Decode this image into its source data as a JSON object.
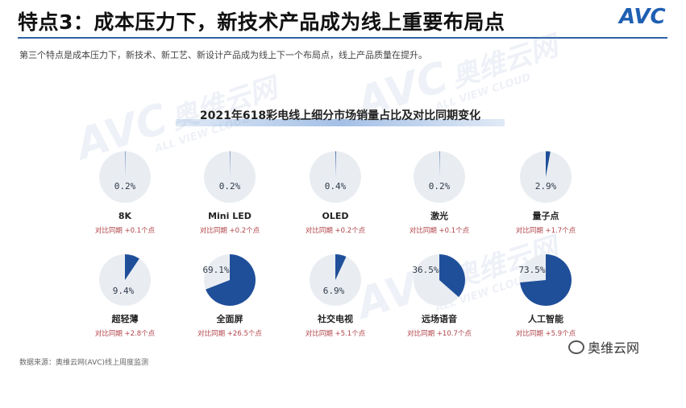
{
  "header": {
    "title": "特点3：成本压力下，新技术产品成为线上重要布局点",
    "logo": "AVC",
    "subtitle": "第三个特点是成本压力下，新技术、新工艺、新设计产品成为线上下一个布局点，线上产品质量在提升。"
  },
  "watermark": {
    "main": "AVC",
    "cn": "奥维云网",
    "sub": "ALL VIEW CLOUD"
  },
  "colors": {
    "pie_fill": "#1f4f99",
    "pie_base": "#e9edf2",
    "change_text": "#b1444a",
    "title_rule": "#2d63a8"
  },
  "chart_data": {
    "type": "pie",
    "title": "2021年618彩电线上细分市场销量占比及对比同期变化",
    "items": [
      {
        "name": "8K",
        "value": 0.2,
        "label": "0.2%",
        "change": "对比同期 +0.1个点"
      },
      {
        "name": "Mini LED",
        "value": 0.2,
        "label": "0.2%",
        "change": "对比同期 +0.2个点"
      },
      {
        "name": "OLED",
        "value": 0.4,
        "label": "0.4%",
        "change": "对比同期 +0.2个点"
      },
      {
        "name": "激光",
        "value": 0.2,
        "label": "0.2%",
        "change": "对比同期 +0.1个点"
      },
      {
        "name": "量子点",
        "value": 2.9,
        "label": "2.9%",
        "change": "对比同期 +1.7个点"
      },
      {
        "name": "超轻薄",
        "value": 9.4,
        "label": "9.4%",
        "change": "对比同期 +2.8个点"
      },
      {
        "name": "全面屏",
        "value": 69.1,
        "label": "69.1%",
        "change": "对比同期 +26.5个点"
      },
      {
        "name": "社交电视",
        "value": 6.9,
        "label": "6.9%",
        "change": "对比同期 +5.1个点"
      },
      {
        "name": "远场语音",
        "value": 36.5,
        "label": "36.5%",
        "change": "对比同期 +10.7个点"
      },
      {
        "name": "人工智能",
        "value": 73.5,
        "label": "73.5%",
        "change": "对比同期 +5.9个点"
      }
    ]
  },
  "footer": {
    "source": "数据来源：奥维云网(AVC)线上周度监测",
    "wechat": "奥维云网"
  }
}
